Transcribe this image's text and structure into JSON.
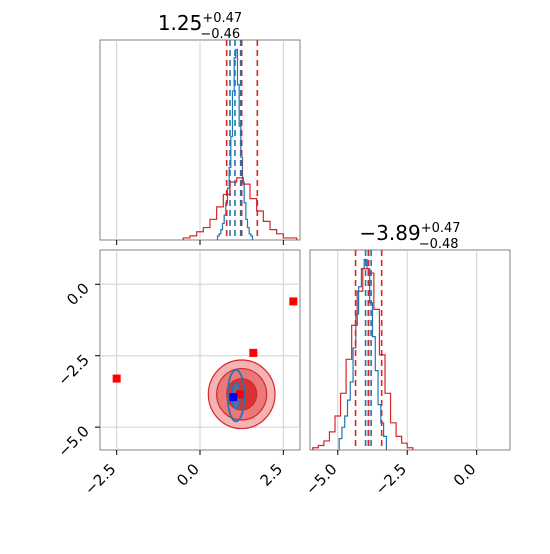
{
  "chart_data": {
    "type": "corner-plot",
    "panels": [
      {
        "name": "param1-marginal",
        "type": "histogram",
        "title": {
          "value": "1.25",
          "plus": "+0.47",
          "minus": "−0.46"
        },
        "xlim": [
          -3.0,
          3.0
        ],
        "x_ticks": [
          -2.5,
          0.0,
          2.5
        ],
        "series": [
          {
            "color": "#1f77b4",
            "bins": [
              [
                0.55,
                0.02
              ],
              [
                0.6,
                0.03
              ],
              [
                0.65,
                0.05
              ],
              [
                0.7,
                0.08
              ],
              [
                0.75,
                0.12
              ],
              [
                0.8,
                0.18
              ],
              [
                0.85,
                0.25
              ],
              [
                0.9,
                0.35
              ],
              [
                0.95,
                0.5
              ],
              [
                1.0,
                0.72
              ],
              [
                1.05,
                0.88
              ],
              [
                1.1,
                0.92
              ],
              [
                1.15,
                0.75
              ],
              [
                1.2,
                0.55
              ],
              [
                1.25,
                0.4
              ],
              [
                1.3,
                0.28
              ],
              [
                1.35,
                0.18
              ],
              [
                1.4,
                0.1
              ],
              [
                1.45,
                0.06
              ],
              [
                1.5,
                0.03
              ],
              [
                1.55,
                0.02
              ]
            ],
            "quantiles": [
              0.9,
              1.05,
              1.22
            ]
          },
          {
            "color": "#d62728",
            "bins": [
              [
                -0.4,
                0.01
              ],
              [
                -0.2,
                0.02
              ],
              [
                0.0,
                0.04
              ],
              [
                0.2,
                0.06
              ],
              [
                0.4,
                0.1
              ],
              [
                0.6,
                0.16
              ],
              [
                0.8,
                0.22
              ],
              [
                1.0,
                0.28
              ],
              [
                1.2,
                0.3
              ],
              [
                1.4,
                0.27
              ],
              [
                1.6,
                0.2
              ],
              [
                1.8,
                0.14
              ],
              [
                2.0,
                0.09
              ],
              [
                2.2,
                0.05
              ],
              [
                2.4,
                0.03
              ],
              [
                2.6,
                0.01
              ],
              [
                2.8,
                0.01
              ]
            ],
            "quantiles": [
              0.8,
              1.25,
              1.72
            ]
          }
        ]
      },
      {
        "name": "param1-param2-joint",
        "type": "2d-density",
        "xlim": [
          -3.0,
          3.0
        ],
        "ylim": [
          -5.8,
          1.2
        ],
        "x_ticks": [
          -2.5,
          0.0,
          2.5
        ],
        "y_ticks": [
          0.0,
          -2.5,
          -5.0
        ],
        "red_markers": [
          [
            2.8,
            -0.6
          ],
          [
            1.6,
            -2.4
          ],
          [
            -2.5,
            -3.3
          ],
          [
            1.2,
            -3.85
          ]
        ],
        "blue_marker": [
          1.0,
          -3.95
        ],
        "red_contours": [
          {
            "center": [
              1.25,
              -3.85
            ],
            "rx": 1.0,
            "ry": 1.2
          },
          {
            "center": [
              1.25,
              -3.85
            ],
            "rx": 0.75,
            "ry": 0.9
          },
          {
            "center": [
              1.25,
              -3.85
            ],
            "rx": 0.45,
            "ry": 0.55
          }
        ],
        "blue_contours": [
          {
            "center": [
              1.08,
              -3.9
            ],
            "rx": 0.25,
            "ry": 0.9
          },
          {
            "center": [
              1.08,
              -3.9
            ],
            "rx": 0.12,
            "ry": 0.45
          }
        ]
      },
      {
        "name": "param2-marginal",
        "type": "histogram",
        "title": {
          "value": "−3.89",
          "plus": "+0.47",
          "minus": "−0.48"
        },
        "xlim": [
          -6.0,
          1.2
        ],
        "x_ticks": [
          -5.0,
          -2.5,
          0.0
        ],
        "series": [
          {
            "color": "#1f77b4",
            "bins": [
              [
                -4.9,
                0.05
              ],
              [
                -4.8,
                0.1
              ],
              [
                -4.7,
                0.15
              ],
              [
                -4.6,
                0.22
              ],
              [
                -4.5,
                0.3
              ],
              [
                -4.4,
                0.45
              ],
              [
                -4.3,
                0.6
              ],
              [
                -4.2,
                0.72
              ],
              [
                -4.1,
                0.8
              ],
              [
                -4.0,
                0.84
              ],
              [
                -3.9,
                0.8
              ],
              [
                -3.8,
                0.65
              ],
              [
                -3.7,
                0.5
              ],
              [
                -3.6,
                0.35
              ],
              [
                -3.5,
                0.2
              ],
              [
                -3.4,
                0.12
              ],
              [
                -3.3,
                0.06
              ]
            ],
            "quantiles": [
              -4.0,
              -3.9,
              -3.8
            ]
          },
          {
            "color": "#d62728",
            "bins": [
              [
                -5.8,
                0.01
              ],
              [
                -5.6,
                0.02
              ],
              [
                -5.4,
                0.04
              ],
              [
                -5.2,
                0.08
              ],
              [
                -5.0,
                0.15
              ],
              [
                -4.8,
                0.25
              ],
              [
                -4.6,
                0.4
              ],
              [
                -4.4,
                0.55
              ],
              [
                -4.2,
                0.7
              ],
              [
                -4.0,
                0.8
              ],
              [
                -3.8,
                0.78
              ],
              [
                -3.6,
                0.62
              ],
              [
                -3.4,
                0.42
              ],
              [
                -3.2,
                0.25
              ],
              [
                -3.0,
                0.12
              ],
              [
                -2.8,
                0.06
              ],
              [
                -2.6,
                0.03
              ],
              [
                -2.4,
                0.01
              ]
            ],
            "quantiles": [
              -4.36,
              -3.89,
              -3.42
            ]
          }
        ]
      }
    ]
  }
}
